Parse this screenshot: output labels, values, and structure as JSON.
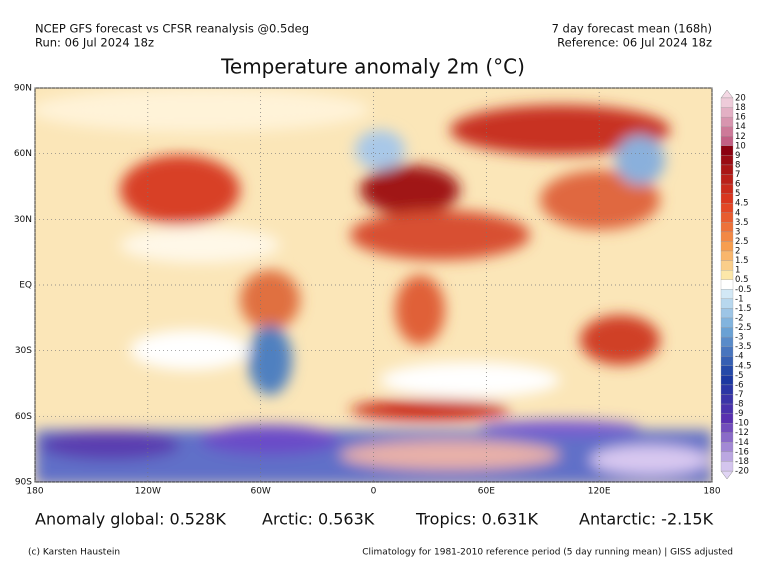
{
  "header": {
    "left": [
      "NCEP GFS forecast vs CFSR reanalysis @0.5deg",
      "Run: 06 Jul 2024 18z"
    ],
    "right": [
      "7 day forecast mean (168h)",
      "Reference: 06 Jul 2024 18z"
    ]
  },
  "title": "Temperature anomaly 2m (°C)",
  "map": {
    "xlim": [
      -180,
      180
    ],
    "ylim": [
      -90,
      90
    ],
    "xticks": [
      {
        "value": -180,
        "label": "180"
      },
      {
        "value": -120,
        "label": "120W"
      },
      {
        "value": -60,
        "label": "60W"
      },
      {
        "value": 0,
        "label": "0"
      },
      {
        "value": 60,
        "label": "60E"
      },
      {
        "value": 120,
        "label": "120E"
      },
      {
        "value": 180,
        "label": "180"
      }
    ],
    "yticks": [
      {
        "value": 90,
        "label": "90N"
      },
      {
        "value": 60,
        "label": "60N"
      },
      {
        "value": 30,
        "label": "30N"
      },
      {
        "value": 0,
        "label": "EQ"
      },
      {
        "value": -30,
        "label": "30S"
      },
      {
        "value": -60,
        "label": "60S"
      },
      {
        "value": -90,
        "label": "90S"
      }
    ],
    "grid": true
  },
  "colorbar": {
    "levels": [
      20,
      18,
      16,
      14,
      12,
      10,
      9,
      8,
      7,
      6,
      5,
      4.5,
      4,
      3.5,
      3,
      2.5,
      2,
      1.5,
      1,
      0.5,
      -0.5,
      -1,
      -1.5,
      -2,
      -2.5,
      -3,
      -3.5,
      -4,
      -4.5,
      -5,
      -6,
      -7,
      -8,
      -9,
      -10,
      -12,
      -14,
      -16,
      -18,
      -20
    ]
  },
  "stats": [
    "Anomaly global: 0.528K",
    "Arctic: 0.563K",
    "Tropics: 0.631K",
    "Antarctic: -2.15K"
  ],
  "footer": {
    "left": "(c) Karsten Haustein",
    "right": "Climatology for 1981-2010 reference period (5 day running mean) | GISS adjusted"
  }
}
